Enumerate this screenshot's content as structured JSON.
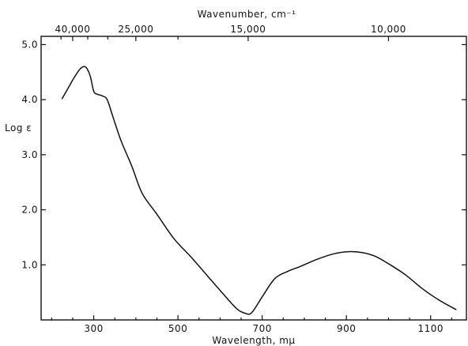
{
  "chart_data": {
    "type": "line",
    "xlabel": "Wavelength, mμ",
    "ylabel": "Log ε",
    "x2label": "Wavenumber, cm⁻¹",
    "xlim": [
      175,
      1185
    ],
    "ylim": [
      0,
      5.15
    ],
    "xticks": [
      300,
      500,
      700,
      900,
      1100
    ],
    "xtick_labels": [
      "300",
      "500",
      "700",
      "900",
      "1100"
    ],
    "yticks": [
      1,
      2,
      3,
      4,
      5
    ],
    "ytick_labels": [
      "1.0",
      "2.0",
      "3.0",
      "4.0",
      "5.0"
    ],
    "x2ticks": [
      40000,
      25000,
      15000,
      10000
    ],
    "x2tick_labels": [
      "40,000",
      "25,000",
      "15,000",
      "10,000"
    ],
    "grid": false,
    "series": [
      {
        "x": [
          225,
          240,
          255,
          268,
          278,
          285,
          292,
          300,
          308,
          320,
          332,
          345,
          365,
          390,
          415,
          450,
          490,
          530,
          570,
          610,
          640,
          660,
          675,
          700,
          730,
          760,
          790,
          830,
          870,
          905,
          940,
          970,
          1000,
          1040,
          1080,
          1120,
          1160
        ],
        "y": [
          4.02,
          4.22,
          4.42,
          4.56,
          4.6,
          4.55,
          4.42,
          4.15,
          4.1,
          4.07,
          4.0,
          3.7,
          3.25,
          2.8,
          2.3,
          1.92,
          1.48,
          1.15,
          0.8,
          0.45,
          0.2,
          0.12,
          0.13,
          0.42,
          0.75,
          0.88,
          0.97,
          1.1,
          1.2,
          1.24,
          1.22,
          1.15,
          1.02,
          0.82,
          0.57,
          0.36,
          0.19
        ]
      }
    ]
  }
}
